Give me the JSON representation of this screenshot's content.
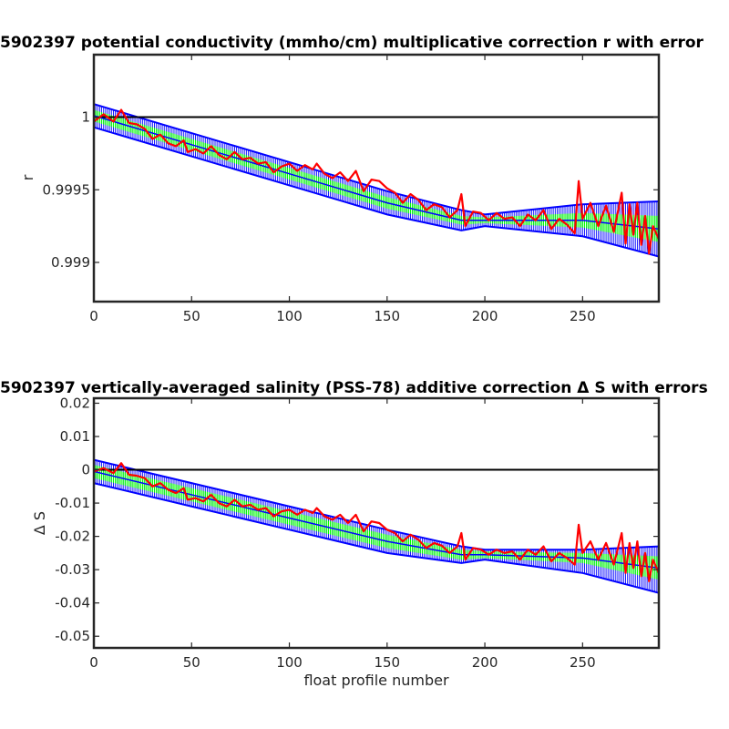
{
  "chart_data": [
    {
      "type": "line",
      "title": "5902397 potential conductivity (mmho/cm) multiplicative correction r with error",
      "xlabel": "",
      "ylabel": "r",
      "xlim": [
        0,
        289
      ],
      "ylim": [
        0.99873,
        1.00043
      ],
      "xticks": [
        0,
        50,
        100,
        150,
        200,
        250
      ],
      "xtick_labels": [
        "0",
        "50",
        "100",
        "150",
        "200",
        "250"
      ],
      "yticks": [
        0.999,
        0.9995,
        1
      ],
      "ytick_labels": [
        "0.999",
        "0.9995",
        "1"
      ],
      "reference_line": 1,
      "series": [
        {
          "role": "fit",
          "color": "#0000ff",
          "x": [
            0,
            50,
            100,
            150,
            188,
            200,
            250,
            289
          ],
          "y": [
            1.00001,
            0.99981,
            0.99961,
            0.99941,
            0.99929,
            0.99929,
            0.99929,
            0.99923
          ]
        },
        {
          "role": "fit_error_band",
          "color": "#0000ff",
          "x": [
            0,
            50,
            100,
            150,
            188,
            200,
            250,
            289
          ],
          "upper": [
            1.00009,
            0.99989,
            0.99969,
            0.99949,
            0.99936,
            0.99933,
            0.9994,
            0.99942
          ],
          "lower": [
            0.99993,
            0.99973,
            0.99953,
            0.99933,
            0.99922,
            0.99925,
            0.99918,
            0.99904
          ]
        },
        {
          "role": "inner_error_band",
          "color": "#00ff00",
          "x": [
            0,
            50,
            100,
            150,
            188,
            200,
            250,
            289
          ],
          "upper": [
            1.00005,
            0.99985,
            0.99965,
            0.99945,
            0.99932,
            0.99931,
            0.99934,
            0.99932
          ],
          "lower": [
            0.99997,
            0.99977,
            0.99957,
            0.99937,
            0.99926,
            0.99927,
            0.99924,
            0.99914
          ]
        },
        {
          "role": "profile_estimate",
          "color": "#ff0000",
          "x": [
            0,
            5,
            10,
            14,
            18,
            22,
            26,
            30,
            34,
            38,
            42,
            46,
            48,
            52,
            56,
            60,
            64,
            68,
            72,
            76,
            80,
            84,
            88,
            92,
            96,
            100,
            104,
            108,
            112,
            114,
            118,
            122,
            126,
            130,
            134,
            138,
            142,
            146,
            150,
            154,
            158,
            162,
            166,
            170,
            174,
            178,
            182,
            186,
            188,
            190,
            194,
            198,
            202,
            206,
            210,
            214,
            218,
            222,
            226,
            230,
            234,
            238,
            242,
            246,
            248,
            250,
            254,
            258,
            262,
            266,
            270,
            272,
            274,
            276,
            278,
            280,
            282,
            284,
            286,
            289
          ],
          "y": [
            0.99997,
            1.00002,
            0.99997,
            1.00005,
            0.99996,
            0.99995,
            0.99992,
            0.99985,
            0.99988,
            0.99982,
            0.9998,
            0.99984,
            0.99976,
            0.99978,
            0.99975,
            0.9998,
            0.99974,
            0.99971,
            0.99976,
            0.99971,
            0.99972,
            0.99968,
            0.99969,
            0.99962,
            0.99966,
            0.99968,
            0.99963,
            0.99967,
            0.99964,
            0.99968,
            0.99961,
            0.99958,
            0.99962,
            0.99956,
            0.99963,
            0.99949,
            0.99957,
            0.99956,
            0.99951,
            0.99948,
            0.99941,
            0.99947,
            0.99943,
            0.99936,
            0.9994,
            0.99938,
            0.99931,
            0.99936,
            0.99947,
            0.99925,
            0.99935,
            0.99934,
            0.99929,
            0.99934,
            0.9993,
            0.99931,
            0.99925,
            0.99933,
            0.99929,
            0.99936,
            0.99923,
            0.9993,
            0.99926,
            0.9992,
            0.99956,
            0.9993,
            0.99941,
            0.99925,
            0.99939,
            0.99921,
            0.99948,
            0.99913,
            0.9994,
            0.99919,
            0.99941,
            0.99912,
            0.99932,
            0.99906,
            0.99925,
            0.99916
          ]
        }
      ]
    },
    {
      "type": "line",
      "title": "5902397 vertically-averaged salinity (PSS-78) additive correction Δ S with errors",
      "xlabel": "float profile number",
      "ylabel": "Δ S",
      "xlim": [
        0,
        289
      ],
      "ylim": [
        -0.0535,
        0.0215
      ],
      "xticks": [
        0,
        50,
        100,
        150,
        200,
        250
      ],
      "xtick_labels": [
        "0",
        "50",
        "100",
        "150",
        "200",
        "250"
      ],
      "yticks": [
        0.02,
        0.01,
        0,
        -0.01,
        -0.02,
        -0.03,
        -0.04,
        -0.05
      ],
      "ytick_labels": [
        "0.02",
        "0.01",
        "0",
        "-0.01",
        "-0.02",
        "-0.03",
        "-0.04",
        "-0.05"
      ],
      "reference_line": 0,
      "series": [
        {
          "role": "fit",
          "color": "#0000ff",
          "x": [
            0,
            50,
            100,
            150,
            188,
            200,
            250,
            289
          ],
          "y": [
            -0.0005,
            -0.0075,
            -0.0145,
            -0.0215,
            -0.0255,
            -0.0255,
            -0.0265,
            -0.0295
          ]
        },
        {
          "role": "fit_error_band",
          "color": "#0000ff",
          "x": [
            0,
            50,
            100,
            150,
            188,
            200,
            250,
            289
          ],
          "upper": [
            0.003,
            -0.004,
            -0.011,
            -0.018,
            -0.023,
            -0.024,
            -0.024,
            -0.023
          ],
          "lower": [
            -0.004,
            -0.011,
            -0.018,
            -0.025,
            -0.028,
            -0.027,
            -0.031,
            -0.037
          ]
        },
        {
          "role": "inner_error_band",
          "color": "#00ff00",
          "x": [
            0,
            50,
            100,
            150,
            188,
            200,
            250,
            289
          ],
          "upper": [
            0.0015,
            -0.0055,
            -0.0125,
            -0.0195,
            -0.024,
            -0.0245,
            -0.025,
            -0.026
          ],
          "lower": [
            -0.0025,
            -0.0095,
            -0.0165,
            -0.0235,
            -0.027,
            -0.0265,
            -0.028,
            -0.033
          ]
        },
        {
          "role": "profile_estimate",
          "color": "#ff0000",
          "x": [
            0,
            5,
            10,
            14,
            18,
            22,
            26,
            30,
            34,
            38,
            42,
            46,
            48,
            52,
            56,
            60,
            64,
            68,
            72,
            76,
            80,
            84,
            88,
            92,
            96,
            100,
            104,
            108,
            112,
            114,
            118,
            122,
            126,
            130,
            134,
            138,
            142,
            146,
            150,
            154,
            158,
            162,
            166,
            170,
            174,
            178,
            182,
            186,
            188,
            190,
            194,
            198,
            202,
            206,
            210,
            214,
            218,
            222,
            226,
            230,
            234,
            238,
            242,
            246,
            248,
            250,
            254,
            258,
            262,
            266,
            270,
            272,
            274,
            276,
            278,
            280,
            282,
            284,
            286,
            289
          ],
          "y": [
            -0.0005,
            0.0005,
            -0.001,
            0.002,
            -0.0015,
            -0.0018,
            -0.0025,
            -0.005,
            -0.004,
            -0.006,
            -0.007,
            -0.0055,
            -0.009,
            -0.0085,
            -0.0095,
            -0.0075,
            -0.01,
            -0.011,
            -0.009,
            -0.011,
            -0.0105,
            -0.012,
            -0.0115,
            -0.014,
            -0.0125,
            -0.012,
            -0.0135,
            -0.012,
            -0.013,
            -0.0115,
            -0.014,
            -0.015,
            -0.0135,
            -0.016,
            -0.0135,
            -0.0185,
            -0.0155,
            -0.016,
            -0.018,
            -0.019,
            -0.0215,
            -0.0195,
            -0.021,
            -0.0235,
            -0.022,
            -0.0228,
            -0.025,
            -0.023,
            -0.019,
            -0.027,
            -0.0235,
            -0.024,
            -0.0255,
            -0.024,
            -0.025,
            -0.0245,
            -0.027,
            -0.024,
            -0.0255,
            -0.023,
            -0.0275,
            -0.025,
            -0.0265,
            -0.0285,
            -0.0165,
            -0.025,
            -0.0215,
            -0.027,
            -0.022,
            -0.0285,
            -0.019,
            -0.031,
            -0.022,
            -0.0295,
            -0.0215,
            -0.032,
            -0.025,
            -0.0335,
            -0.027,
            -0.031
          ]
        }
      ]
    }
  ]
}
